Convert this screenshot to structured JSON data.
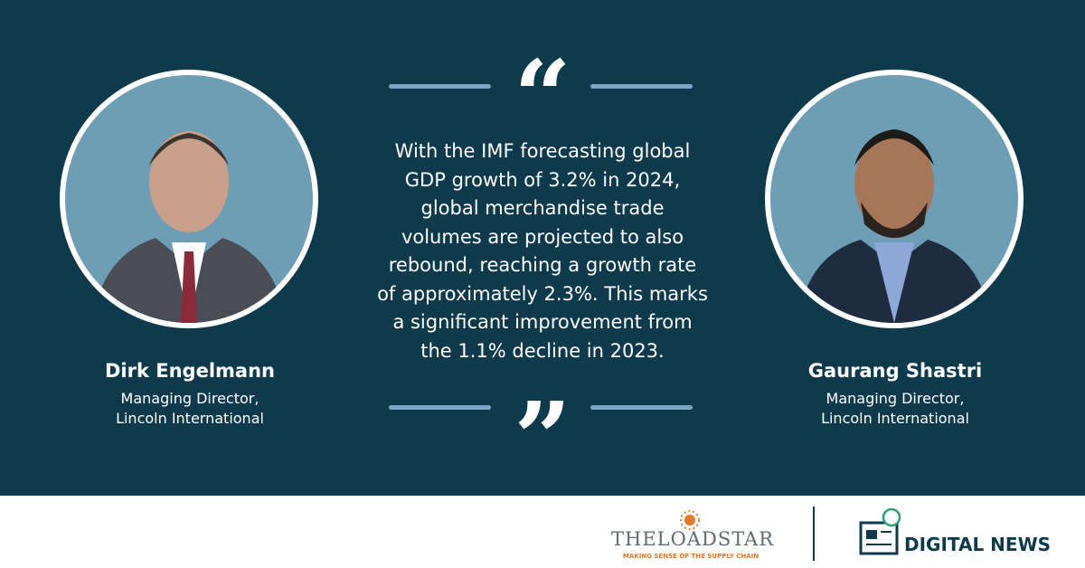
{
  "quote": {
    "open_mark": "“",
    "close_mark": "”",
    "lines": [
      "With the IMF forecasting global",
      "GDP growth of 3.2% in 2024,",
      "global merchandise trade",
      "volumes are projected to also",
      "rebound, reaching a growth rate",
      "of approximately 2.3%. This marks",
      "a significant improvement from",
      "the 1.1% decline in 2023."
    ]
  },
  "speakers": [
    {
      "name": "Dirk Engelmann",
      "title_lines": [
        "Managing Director,",
        "Lincoln International"
      ]
    },
    {
      "name": "Gaurang Shastri",
      "title_lines": [
        "Managing Director,",
        "Lincoln International"
      ]
    }
  ],
  "footer": {
    "brand": "THELOADSTAR",
    "tagline": "MAKING SENSE OF THE SUPPLY CHAIN",
    "section": "DIGITAL NEWS"
  }
}
